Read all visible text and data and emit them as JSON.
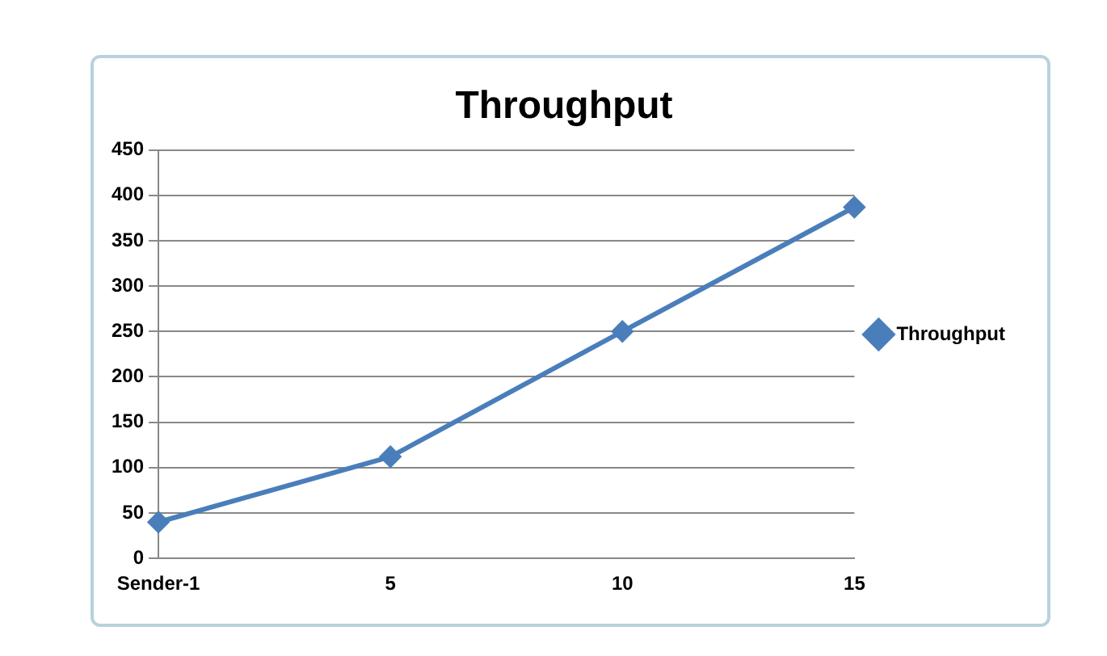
{
  "chart_data": {
    "type": "line",
    "title": "Throughput",
    "categories": [
      "Sender-1",
      "5",
      "10",
      "15"
    ],
    "series": [
      {
        "name": "Throughput",
        "color": "#4a7ebb",
        "values": [
          40,
          112,
          250,
          387
        ]
      }
    ],
    "ylim": [
      0,
      450
    ],
    "yticks": [
      0,
      50,
      100,
      150,
      200,
      250,
      300,
      350,
      400,
      450
    ],
    "grid": "y",
    "legend": "right",
    "marker": "diamond",
    "line_style": "solid"
  }
}
